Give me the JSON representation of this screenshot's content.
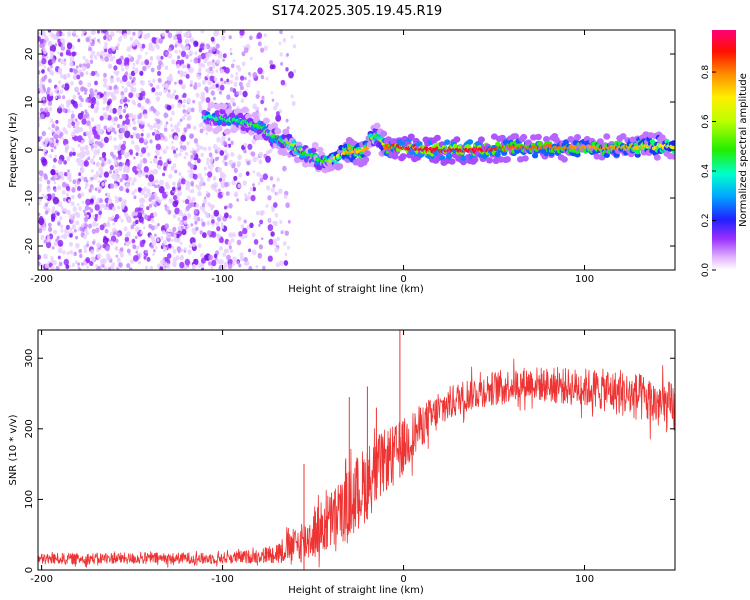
{
  "title": "S174.2025.305.19.45.R19",
  "chart_data": [
    {
      "type": "heatmap",
      "title": "",
      "xlabel": "Height of straight line (km)",
      "ylabel": "Frequency (Hz)",
      "xlim": [
        -202,
        150
      ],
      "ylim": [
        -25,
        25
      ],
      "xticks": [
        -200,
        -100,
        0,
        100
      ],
      "xtick_labels": [
        "-200",
        "-100",
        "0",
        "100"
      ],
      "yticks": [
        -20,
        -10,
        0,
        10,
        20
      ],
      "ytick_labels": [
        "-20",
        "-10",
        "0",
        "10",
        "20"
      ],
      "colorbar": {
        "label": "Normalized spectral amplitude",
        "range": [
          0,
          0.97
        ],
        "ticks": [
          0.0,
          0.2,
          0.4,
          0.6,
          0.8
        ],
        "tick_labels": [
          "0.0",
          "0.2",
          "0.4",
          "0.6",
          "0.8"
        ],
        "colormap": [
          "#ffffff",
          "#cc66ff",
          "#8800ee",
          "#2222ff",
          "#00ccff",
          "#00ff88",
          "#22ee00",
          "#ccff00",
          "#ffee00",
          "#ff8800",
          "#ff0000",
          "#ff0077"
        ]
      },
      "noise_region_x": [
        -202,
        -60
      ],
      "ridge": {
        "x": [
          -110,
          -100,
          -90,
          -80,
          -75,
          -70,
          -65,
          -60,
          -55,
          -50,
          -45,
          -40,
          -35,
          -30,
          -25,
          -20,
          -18,
          -15,
          -12,
          -10,
          -5,
          0,
          20,
          40,
          60,
          80,
          100,
          120,
          135,
          150
        ],
        "y": [
          7,
          6.5,
          6,
          5,
          3.5,
          2.5,
          1.5,
          0.5,
          -0.5,
          -1.5,
          -2,
          -2.5,
          -1,
          0,
          -0.5,
          0,
          2,
          3,
          1.5,
          0.5,
          0.5,
          0.5,
          0,
          0,
          0.5,
          0.5,
          0.5,
          0.5,
          0.8,
          0.8
        ],
        "amplitude": [
          0.4,
          0.45,
          0.45,
          0.5,
          0.45,
          0.5,
          0.55,
          0.6,
          0.5,
          0.45,
          0.5,
          0.6,
          0.7,
          0.8,
          0.75,
          0.8,
          0.6,
          0.5,
          0.6,
          0.85,
          0.9,
          0.95,
          0.95,
          0.95,
          0.85,
          0.85,
          0.8,
          0.8,
          0.75,
          0.7
        ]
      }
    },
    {
      "type": "line",
      "title": "",
      "xlabel": "Height of straight line (km)",
      "ylabel": "SNR (10 * v/v)",
      "xlim": [
        -202,
        150
      ],
      "ylim": [
        0,
        340
      ],
      "xticks": [
        -200,
        -100,
        0,
        100
      ],
      "xtick_labels": [
        "-200",
        "-100",
        "0",
        "100"
      ],
      "yticks": [
        0,
        100,
        200,
        300
      ],
      "ytick_labels": [
        "0",
        "100",
        "200",
        "300"
      ],
      "color": "#ee3333",
      "series": [
        {
          "name": "SNR",
          "x": [
            -202,
            -190,
            -180,
            -170,
            -160,
            -150,
            -140,
            -130,
            -120,
            -110,
            -100,
            -90,
            -80,
            -75,
            -70,
            -65,
            -60,
            -55,
            -50,
            -45,
            -40,
            -35,
            -30,
            -25,
            -20,
            -15,
            -10,
            -5,
            0,
            5,
            10,
            15,
            20,
            25,
            30,
            35,
            40,
            45,
            50,
            60,
            70,
            80,
            90,
            100,
            110,
            120,
            130,
            140,
            150
          ],
          "values": [
            15,
            16,
            16,
            16,
            17,
            16,
            17,
            16,
            17,
            16,
            17,
            18,
            20,
            22,
            25,
            30,
            35,
            40,
            50,
            60,
            70,
            80,
            95,
            110,
            125,
            140,
            155,
            165,
            175,
            190,
            205,
            215,
            225,
            235,
            242,
            248,
            252,
            255,
            258,
            262,
            265,
            262,
            260,
            258,
            255,
            250,
            245,
            235,
            228
          ],
          "noise": [
            8,
            8,
            8,
            8,
            8,
            8,
            8,
            8,
            8,
            8,
            8,
            9,
            10,
            12,
            15,
            20,
            25,
            30,
            35,
            40,
            45,
            45,
            50,
            55,
            55,
            50,
            45,
            40,
            40,
            35,
            30,
            28,
            26,
            25,
            24,
            24,
            24,
            24,
            24,
            24,
            24,
            25,
            26,
            28,
            30,
            32,
            34,
            36,
            38
          ]
        }
      ],
      "spikes": [
        {
          "x": -55,
          "y": 150
        },
        {
          "x": -30,
          "y": 245
        },
        {
          "x": -20,
          "y": 260
        },
        {
          "x": -2,
          "y": 340
        },
        {
          "x": -15,
          "y": 230
        }
      ]
    }
  ]
}
